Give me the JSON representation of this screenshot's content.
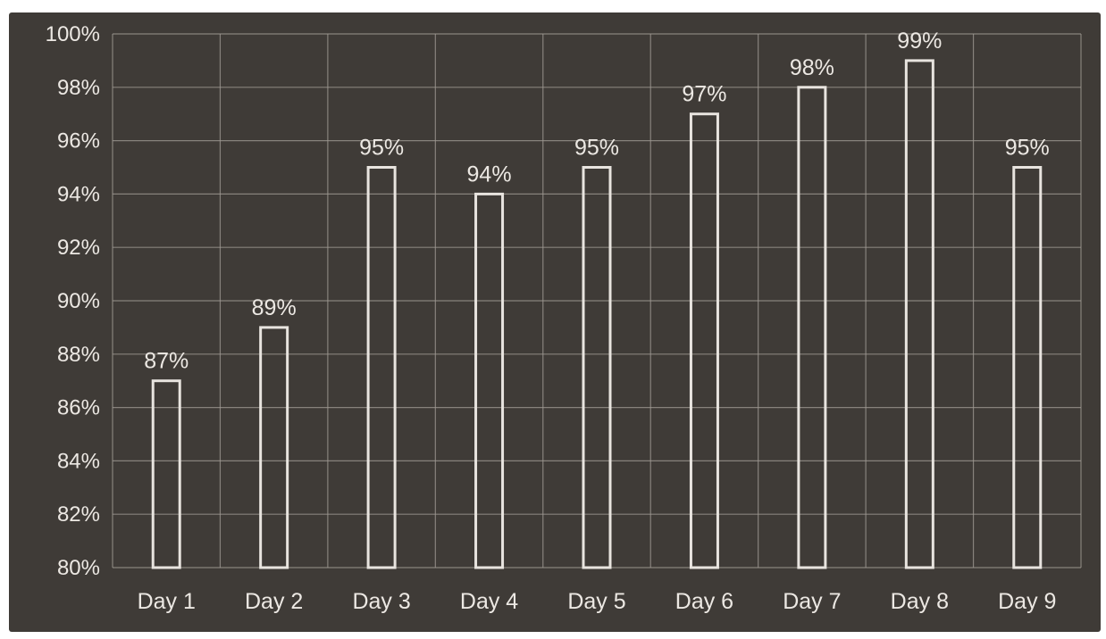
{
  "chart_data": {
    "type": "bar",
    "title": "",
    "xlabel": "",
    "ylabel": "",
    "categories": [
      "Day 1",
      "Day 2",
      "Day 3",
      "Day 4",
      "Day 5",
      "Day 6",
      "Day 7",
      "Day 8",
      "Day 9"
    ],
    "values": [
      87,
      89,
      95,
      94,
      95,
      97,
      98,
      99,
      95
    ],
    "data_labels": [
      "87%",
      "89%",
      "95%",
      "94%",
      "95%",
      "97%",
      "98%",
      "99%",
      "95%"
    ],
    "ylim": [
      80,
      100
    ],
    "y_ticks": [
      80,
      82,
      84,
      86,
      88,
      90,
      92,
      94,
      96,
      98,
      100
    ],
    "y_tick_labels": [
      "80%",
      "82%",
      "84%",
      "86%",
      "88%",
      "90%",
      "92%",
      "94%",
      "96%",
      "98%",
      "100%"
    ],
    "grid": true,
    "legend": "none",
    "colors": {
      "background": "#3f3b37",
      "grid": "#a09a94",
      "bar_outline": "#e8e4df",
      "text": "#ece8e3"
    }
  }
}
